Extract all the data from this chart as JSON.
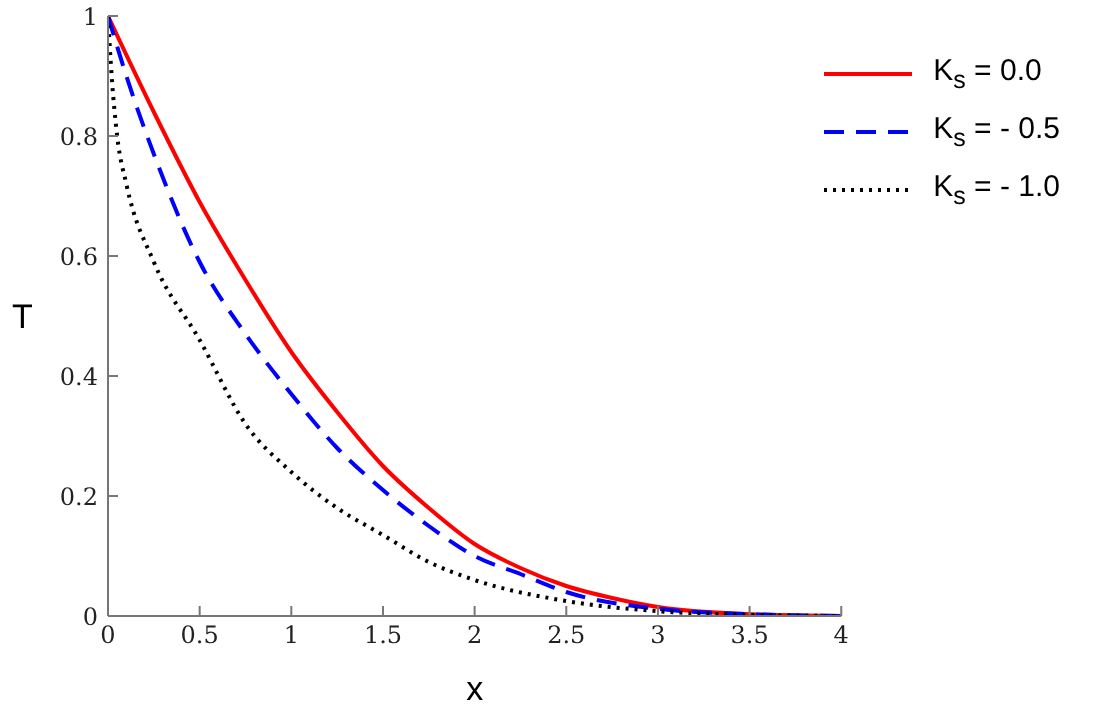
{
  "chart_data": {
    "type": "line",
    "xlabel": "x",
    "ylabel": "T",
    "xlim": [
      0,
      4
    ],
    "ylim": [
      0,
      1
    ],
    "xticks": [
      0,
      0.5,
      1,
      1.5,
      2,
      2.5,
      3,
      3.5,
      4
    ],
    "yticks": [
      0,
      0.2,
      0.4,
      0.6,
      0.8,
      1
    ],
    "grid": false,
    "legend": "top right",
    "marker": "none",
    "series": [
      {
        "name": "K$_{s}$ =  0.0",
        "color": "#ff0000",
        "line_style": "solid",
        "x": [
          0,
          0.25,
          0.5,
          0.75,
          1,
          1.25,
          1.5,
          1.75,
          2,
          2.25,
          2.5,
          2.75,
          3,
          3.5,
          4
        ],
        "values": [
          1,
          0.84,
          0.69,
          0.56,
          0.44,
          0.34,
          0.25,
          0.18,
          0.12,
          0.08,
          0.05,
          0.03,
          0.015,
          0.003,
          0
        ]
      },
      {
        "name": "K$_{s}$ = - 0.5",
        "color": "#0000ff",
        "line_style": "dashed",
        "x": [
          0,
          0.1,
          0.25,
          0.5,
          0.75,
          1,
          1.25,
          1.5,
          1.75,
          2,
          2.25,
          2.5,
          3,
          3.5,
          4
        ],
        "values": [
          1,
          0.9,
          0.77,
          0.59,
          0.47,
          0.37,
          0.28,
          0.21,
          0.15,
          0.1,
          0.07,
          0.04,
          0.012,
          0.003,
          0
        ]
      },
      {
        "name": "K$_{s}$ = - 1.0",
        "color": "#000000",
        "line_style": "dotted",
        "x": [
          0,
          0.02,
          0.05,
          0.1,
          0.25,
          0.5,
          0.75,
          1,
          1.25,
          1.5,
          1.75,
          2,
          2.5,
          3,
          3.5,
          4
        ],
        "values": [
          1,
          0.9,
          0.8,
          0.72,
          0.59,
          0.46,
          0.32,
          0.24,
          0.18,
          0.135,
          0.09,
          0.06,
          0.025,
          0.008,
          0.002,
          0
        ]
      }
    ]
  }
}
